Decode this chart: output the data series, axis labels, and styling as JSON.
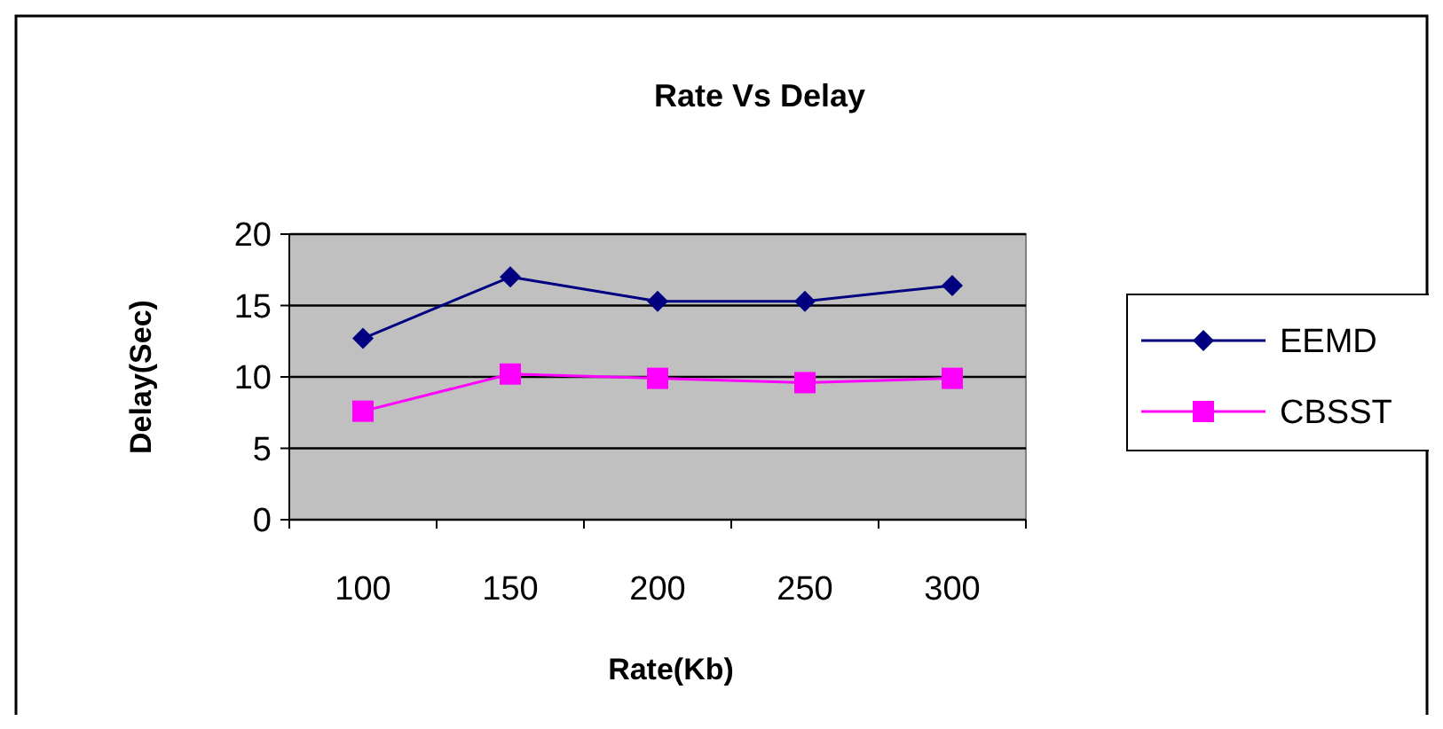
{
  "chart_data": {
    "type": "line",
    "title": "Rate Vs Delay",
    "xlabel": "Rate(Kb)",
    "ylabel": "Delay(Sec)",
    "categories": [
      "100",
      "150",
      "200",
      "250",
      "300"
    ],
    "series": [
      {
        "name": "EEMD",
        "color": "#000080",
        "marker": "diamond",
        "values": [
          12.7,
          17,
          15.3,
          15.3,
          16.4
        ]
      },
      {
        "name": "CBSST",
        "color": "#ff00ff",
        "marker": "square",
        "values": [
          7.6,
          10.2,
          9.9,
          9.6,
          9.9
        ]
      }
    ],
    "ylim": [
      0,
      20
    ],
    "yticks": [
      0,
      5,
      10,
      15,
      20
    ],
    "grid": "y",
    "legend": "right"
  }
}
